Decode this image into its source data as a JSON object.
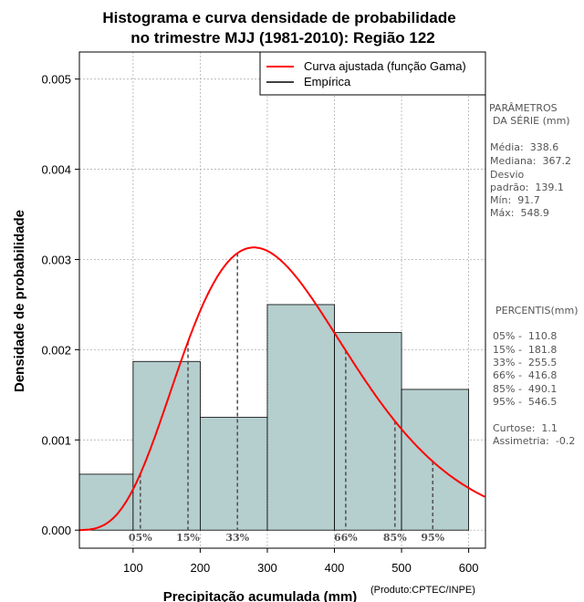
{
  "chart_data": {
    "type": "bar",
    "title": [
      "Histograma e curva densidade de probabilidade",
      "no trimestre MJJ (1981-2010): Região 122"
    ],
    "xlabel": "Precipitação acumulada (mm)",
    "ylabel": "Densidade de probabilidade",
    "xlim": [
      20,
      625
    ],
    "ylim": [
      -0.0002,
      0.0053
    ],
    "xticks": [
      100,
      200,
      300,
      400,
      500,
      600
    ],
    "yticks": [
      0.0,
      0.001,
      0.002,
      0.003,
      0.004,
      0.005
    ],
    "ytick_labels": [
      "0.000",
      "0.001",
      "0.002",
      "0.003",
      "0.004",
      "0.005"
    ],
    "grid": true,
    "bins": [
      {
        "start": 20,
        "end": 100,
        "density": 0.00062
      },
      {
        "start": 100,
        "end": 200,
        "density": 0.00187
      },
      {
        "start": 200,
        "end": 300,
        "density": 0.00125
      },
      {
        "start": 300,
        "end": 400,
        "density": 0.0025
      },
      {
        "start": 400,
        "end": 500,
        "density": 0.00219
      },
      {
        "start": 500,
        "end": 600,
        "density": 0.00156
      }
    ],
    "gamma_fit": {
      "shape": 6.0,
      "scale": 56.0
    },
    "percentile_lines": [
      {
        "label": "05%",
        "x": 110.8
      },
      {
        "label": "15%",
        "x": 181.8
      },
      {
        "label": "33%",
        "x": 255.5
      },
      {
        "label": "66%",
        "x": 416.8
      },
      {
        "label": "85%",
        "x": 490.1
      },
      {
        "label": "95%",
        "x": 546.5
      }
    ],
    "legend": {
      "position": "top-right",
      "entries": [
        "Curva ajustada (função Gama)",
        "Empírica"
      ]
    },
    "colors": {
      "bars": "#b5cece",
      "curve": "#ff0000",
      "grid": "#b0b0b0",
      "percentile": "#555555"
    }
  },
  "stats_panel": {
    "params_title_1": "PARÂMETROS",
    "params_title_2": "DA SÉRIE (mm)",
    "media": "Média:  338.6",
    "mediana": "Mediana:  367.2",
    "desvio_1": "Desvio",
    "desvio_2": "padrão:  139.1",
    "min": "Mín:  91.7",
    "max": "Máx:  548.9",
    "percentis_title": "PERCENTIS(mm)",
    "p05": "05% -  110.8",
    "p15": "15% -  181.8",
    "p33": "33% -  255.5",
    "p66": "66% -  416.8",
    "p85": "85% -  490.1",
    "p95": "95% -  546.5",
    "curtose": "Curtose:  1.1",
    "assimetria": "Assimetria:  -0.2"
  },
  "credit": "(Produto:CPTEC/INPE)"
}
